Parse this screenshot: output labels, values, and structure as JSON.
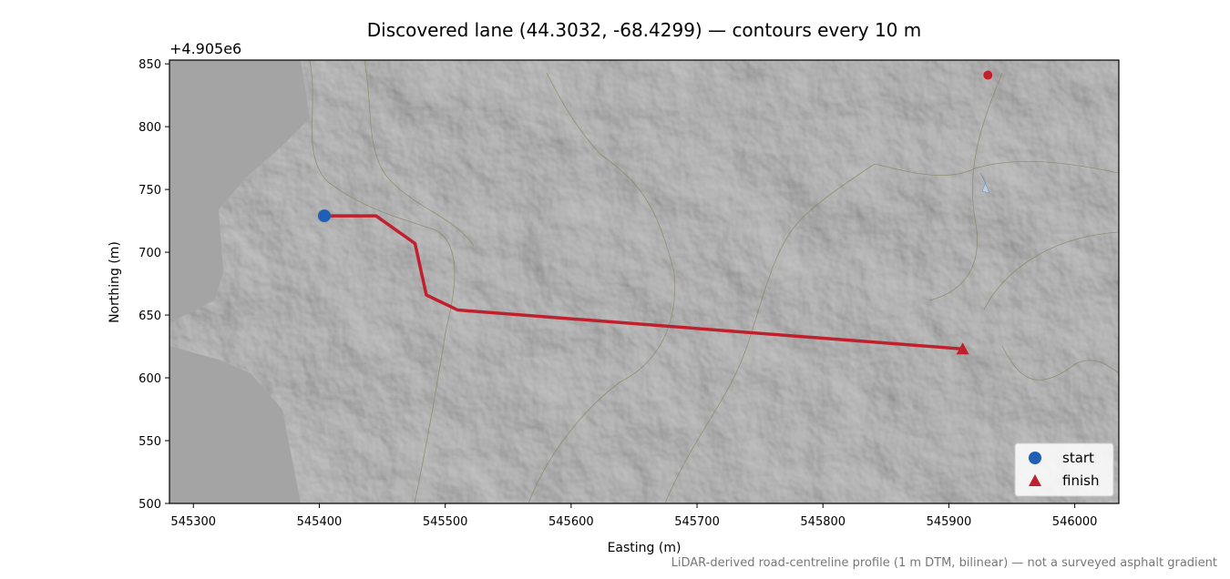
{
  "chart_data": {
    "type": "line",
    "title": "Discovered lane (44.3032, -68.4299) — contours every 10 m",
    "xlabel": "Easting (m)",
    "ylabel": "Northing (m)",
    "y_offset_label": "+4.905e6",
    "footnote": "LiDAR-derived road-centreline profile (1 m DTM, bilinear) — not a surveyed asphalt gradient",
    "xlim": [
      545281,
      546035
    ],
    "ylim": [
      500,
      853
    ],
    "xticks": [
      545300,
      545400,
      545500,
      545600,
      545700,
      545800,
      545900,
      546000
    ],
    "yticks": [
      500,
      550,
      600,
      650,
      700,
      750,
      800,
      850
    ],
    "series": [
      {
        "color": "#c0202c",
        "x": [
          545404,
          545445,
          545476,
          545485,
          545510,
          545911
        ],
        "y": [
          729,
          729,
          707,
          666,
          654,
          623
        ]
      }
    ],
    "markers": [
      {
        "name": "start",
        "shape": "circle",
        "color": "#1f5fb4",
        "x": 545404,
        "y": 729
      },
      {
        "name": "finish",
        "shape": "triangle",
        "color": "#c0202c",
        "x": 545911,
        "y": 623
      }
    ],
    "points": [
      {
        "color": "#c0202c",
        "x": 545931,
        "y": 841
      }
    ],
    "legend": "lower right"
  }
}
